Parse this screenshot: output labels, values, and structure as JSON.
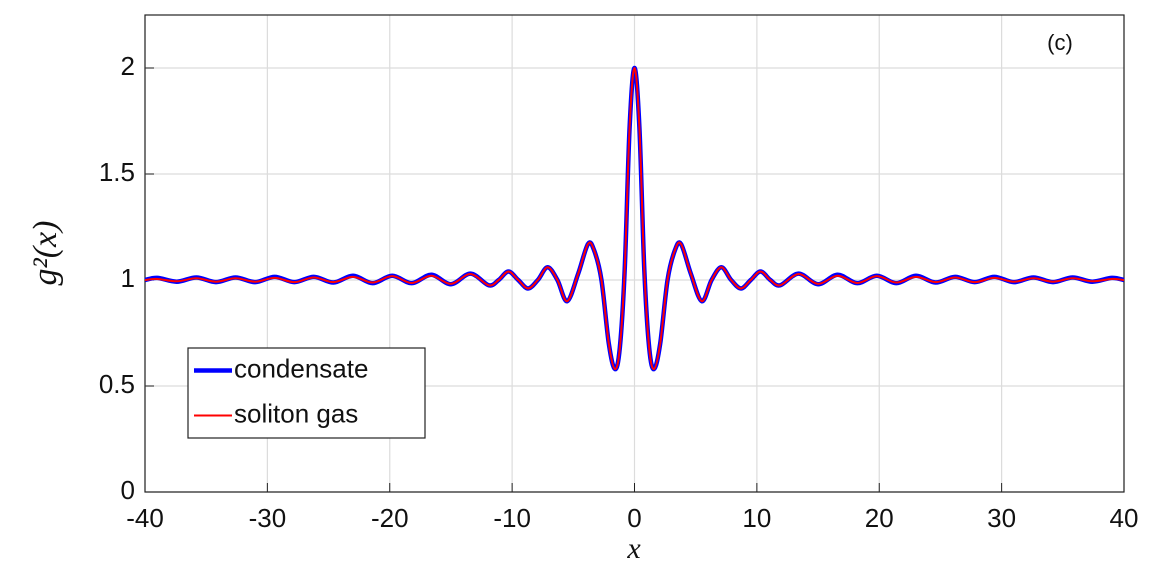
{
  "chart_data": {
    "type": "line",
    "annotation": "(c)",
    "xlabel": "x",
    "ylabel": "g²(x)",
    "x": [
      -40,
      -39,
      -37.4,
      -35.8,
      -34.2,
      -32.6,
      -31,
      -29.4,
      -27.8,
      -26.2,
      -24.6,
      -23,
      -21.4,
      -19.8,
      -18.2,
      -16.6,
      -15,
      -13.4,
      -11.9,
      -11.1,
      -10.3,
      -9.5,
      -8.7,
      -7.9,
      -7.1,
      -6.3,
      -5.5,
      -4.6,
      -3.8,
      -3.3,
      -2.7,
      -2.1,
      -1.6,
      -1.2,
      -0.8,
      -0.4,
      0,
      0.4,
      0.8,
      1.2,
      1.6,
      2.1,
      2.7,
      3.3,
      3.8,
      4.6,
      5.5,
      6.3,
      7.1,
      7.9,
      8.7,
      9.5,
      10.3,
      11.1,
      11.9,
      13.4,
      15,
      16.6,
      18.2,
      19.8,
      21.4,
      23,
      24.6,
      26.2,
      27.8,
      29.4,
      31,
      32.6,
      34.2,
      35.8,
      37.4,
      39,
      40
    ],
    "series": [
      {
        "name": "condensate",
        "color": "#0000ff",
        "values": [
          1.0,
          1.01,
          0.992,
          1.012,
          0.99,
          1.012,
          0.99,
          1.015,
          0.99,
          1.015,
          0.988,
          1.02,
          0.985,
          1.02,
          0.985,
          1.025,
          0.98,
          1.03,
          0.975,
          1.0,
          1.04,
          1.0,
          0.96,
          1.0,
          1.06,
          1.0,
          0.9,
          1.03,
          1.17,
          1.14,
          1.0,
          0.7,
          0.58,
          0.68,
          1.05,
          1.72,
          2.0,
          1.72,
          1.05,
          0.68,
          0.58,
          0.7,
          1.0,
          1.14,
          1.17,
          1.03,
          0.9,
          1.0,
          1.06,
          1.0,
          0.96,
          1.0,
          1.04,
          1.0,
          0.975,
          1.03,
          0.98,
          1.025,
          0.985,
          1.02,
          0.985,
          1.02,
          0.988,
          1.015,
          0.99,
          1.015,
          0.99,
          1.012,
          0.99,
          1.012,
          0.992,
          1.01,
          1.0
        ]
      },
      {
        "name": "soliton gas",
        "color": "#ff0000",
        "values": [
          1.0,
          1.005,
          0.994,
          1.008,
          0.992,
          1.008,
          0.992,
          1.01,
          0.99,
          1.012,
          0.99,
          1.015,
          0.988,
          1.018,
          0.986,
          1.02,
          0.982,
          1.028,
          0.975,
          1.0,
          1.04,
          1.0,
          0.96,
          1.0,
          1.06,
          1.0,
          0.9,
          1.03,
          1.17,
          1.14,
          1.0,
          0.7,
          0.58,
          0.68,
          1.05,
          1.72,
          2.0,
          1.72,
          1.05,
          0.68,
          0.58,
          0.7,
          1.0,
          1.14,
          1.17,
          1.03,
          0.9,
          1.0,
          1.06,
          1.0,
          0.96,
          1.0,
          1.04,
          1.0,
          0.975,
          1.028,
          0.982,
          1.02,
          0.986,
          1.018,
          0.988,
          1.015,
          0.99,
          1.012,
          0.99,
          1.01,
          0.992,
          1.008,
          0.992,
          1.008,
          0.994,
          1.005,
          1.0
        ]
      }
    ],
    "xlim": [
      -40,
      40
    ],
    "ylim": [
      0,
      2.25
    ],
    "xticks": [
      -40,
      -30,
      -20,
      -10,
      0,
      10,
      20,
      30,
      40
    ],
    "yticks": [
      0,
      0.5,
      1,
      1.5,
      2
    ],
    "grid": true,
    "legend": "lower left"
  }
}
